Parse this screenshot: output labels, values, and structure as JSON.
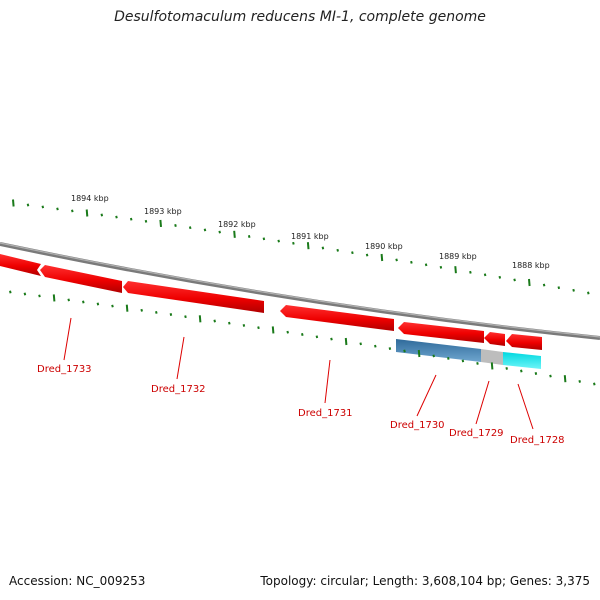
{
  "title": "Desulfotomaculum reducens MI-1, complete genome",
  "accession": "Accession: NC_009253",
  "topology": "Topology: circular; Length: 3,608,104 bp; Genes: 3,375",
  "scale_labels": [
    "1894 kbp",
    "1893 kbp",
    "1892 kbp",
    "1891 kbp",
    "1890 kbp",
    "1889 kbp",
    "1888 kbp"
  ],
  "genes": [
    "Dred_1733",
    "Dred_1732",
    "Dred_1731",
    "Dred_1730",
    "Dred_1729",
    "Dred_1728"
  ],
  "colors": {
    "gene": "#ee0000",
    "gene_label": "#cc0000",
    "tick": "#1a7a1a",
    "backbone": "#808080",
    "highlight_blue": "#3f7fb0",
    "highlight_grey": "#b8b8b8",
    "highlight_cyan": "#00e5ee"
  }
}
